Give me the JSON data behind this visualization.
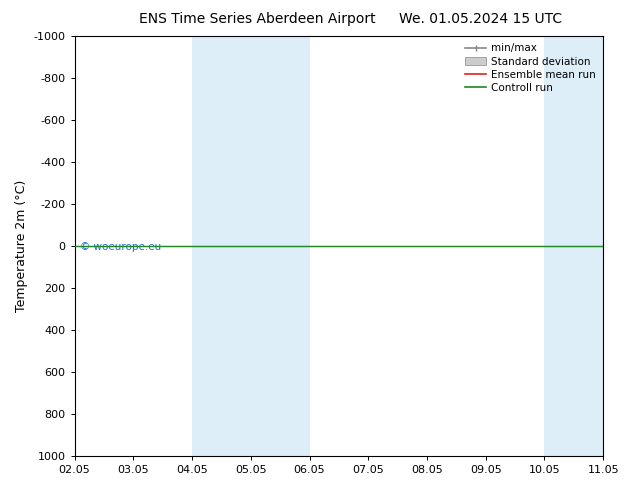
{
  "title_left": "ENS Time Series Aberdeen Airport",
  "title_right": "We. 01.05.2024 15 UTC",
  "ylabel": "Temperature 2m (°C)",
  "xtick_labels": [
    "02.05",
    "03.05",
    "04.05",
    "05.05",
    "06.05",
    "07.05",
    "08.05",
    "09.05",
    "10.05",
    "11.05"
  ],
  "xtick_positions": [
    0,
    1,
    2,
    3,
    4,
    5,
    6,
    7,
    8,
    9
  ],
  "xlim": [
    0,
    9
  ],
  "ylim_bottom": 1000,
  "ylim_top": -1000,
  "yticks": [
    -1000,
    -800,
    -600,
    -400,
    -200,
    0,
    200,
    400,
    600,
    800,
    1000
  ],
  "shade_bands": [
    [
      2,
      3
    ],
    [
      3,
      4
    ],
    [
      8,
      9
    ],
    [
      9,
      10
    ]
  ],
  "shade_color": "#ddeef8",
  "control_run_y": 0,
  "ensemble_mean_y": 0,
  "background_color": "#ffffff",
  "watermark": "© woeurope.eu",
  "watermark_color": "#1a6be0",
  "legend_entries": [
    "min/max",
    "Standard deviation",
    "Ensemble mean run",
    "Controll run"
  ],
  "legend_line_color": "#888888",
  "legend_std_color": "#cccccc",
  "legend_ensemble_color": "#dd2222",
  "legend_control_color": "#228822",
  "control_line_color": "#228822",
  "ensemble_line_color": "#dd2222",
  "title_fontsize": 10,
  "axis_label_fontsize": 9,
  "tick_fontsize": 8,
  "legend_fontsize": 7.5
}
